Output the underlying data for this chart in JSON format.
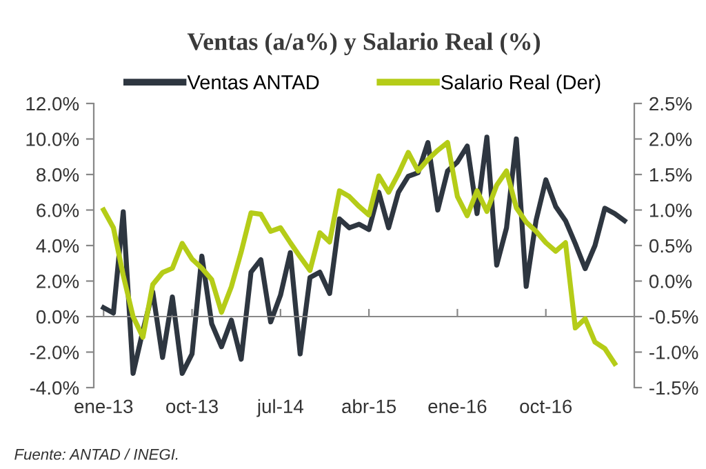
{
  "chart_data": {
    "type": "line",
    "title": "Ventas (a/a%) y Salario Real (%)",
    "categories": [
      "ene-13",
      null,
      null,
      null,
      null,
      null,
      null,
      null,
      null,
      "oct-13",
      null,
      null,
      null,
      null,
      null,
      null,
      null,
      null,
      "jul-14",
      null,
      null,
      null,
      null,
      null,
      null,
      null,
      null,
      "abr-15",
      null,
      null,
      null,
      null,
      null,
      null,
      null,
      null,
      "ene-16",
      null,
      null,
      null,
      null,
      null,
      null,
      null,
      null,
      "oct-16",
      null,
      null,
      null,
      null,
      null,
      null,
      null,
      null
    ],
    "series": [
      {
        "name": "Ventas ANTAD",
        "color": "#2e3640",
        "values": [
          0.5,
          0.2,
          5.9,
          -3.2,
          -0.8,
          1.4,
          -2.3,
          1.1,
          -3.2,
          -2.1,
          3.4,
          -0.4,
          -1.7,
          -0.2,
          -2.4,
          2.5,
          3.2,
          -0.3,
          1.2,
          3.6,
          -2.1,
          2.2,
          2.5,
          1.3,
          5.5,
          5.0,
          5.2,
          4.9,
          7.0,
          5.0,
          7.0,
          7.9,
          8.1,
          9.8,
          6.0,
          8.2,
          8.7,
          9.6,
          5.8,
          10.1,
          2.9,
          5.0,
          10.0,
          1.7,
          5.4,
          7.7,
          6.2,
          5.4,
          4.1,
          2.7,
          4.0,
          6.1,
          5.8,
          5.4
        ]
      },
      {
        "name": "Salario Real (Der)",
        "color": "#b5cc18",
        "axis": "y2",
        "values": [
          1.0,
          0.75,
          0.08,
          -0.5,
          -0.79,
          -0.05,
          0.12,
          0.18,
          0.53,
          0.31,
          0.18,
          0.02,
          -0.44,
          -0.08,
          0.41,
          0.96,
          0.94,
          0.7,
          0.75,
          0.54,
          0.34,
          0.15,
          0.68,
          0.55,
          1.27,
          1.19,
          1.05,
          0.93,
          1.48,
          1.25,
          1.51,
          1.81,
          1.55,
          1.71,
          1.84,
          1.95,
          1.19,
          0.92,
          1.27,
          0.98,
          1.35,
          1.55,
          1.03,
          0.83,
          0.7,
          0.54,
          0.42,
          0.54,
          -0.66,
          -0.53,
          -0.86,
          -0.95,
          -1.16,
          null
        ]
      }
    ],
    "ylim": [
      -4,
      12
    ],
    "yticks": [
      {
        "value": -4,
        "label": "-4.0%"
      },
      {
        "value": -2,
        "label": "-2.0%"
      },
      {
        "value": 0,
        "label": "0.0%"
      },
      {
        "value": 2,
        "label": "2.0%"
      },
      {
        "value": 4,
        "label": "4.0%"
      },
      {
        "value": 6,
        "label": "6.0%"
      },
      {
        "value": 8,
        "label": "8.0%"
      },
      {
        "value": 10,
        "label": "10.0%"
      },
      {
        "value": 12,
        "label": "12.0%"
      }
    ],
    "y2lim": [
      -1.5,
      2.5
    ],
    "y2ticks": [
      {
        "value": -1.5,
        "label": "-1.5%"
      },
      {
        "value": -1.0,
        "label": "-1.0%"
      },
      {
        "value": -0.5,
        "label": "-0.5%"
      },
      {
        "value": 0.0,
        "label": "0.0%"
      },
      {
        "value": 0.5,
        "label": "0.5%"
      },
      {
        "value": 1.0,
        "label": "1.0%"
      },
      {
        "value": 1.5,
        "label": "1.5%"
      },
      {
        "value": 2.0,
        "label": "2.0%"
      },
      {
        "value": 2.5,
        "label": "2.5%"
      }
    ],
    "legend": "top",
    "marker": "none",
    "line_style": "solid",
    "annotations": [
      "Fuente: ANTAD / INEGI."
    ]
  }
}
